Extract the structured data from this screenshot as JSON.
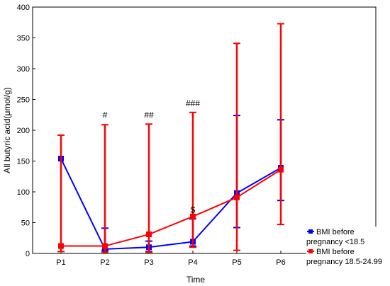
{
  "chart_data": {
    "type": "line",
    "xlabel": "Time",
    "ylabel": "All butyric acid(μmol/g)",
    "ylim": [
      0,
      400
    ],
    "yticks": [
      0,
      50,
      100,
      150,
      200,
      250,
      300,
      350,
      400
    ],
    "categories": [
      "P1",
      "P2",
      "P3",
      "P4",
      "P5",
      "P6"
    ],
    "grid": false,
    "legend_position": "bottom-right",
    "series": [
      {
        "name": "BMI before pregnancy <18.5",
        "legend_lines": [
          "BMI before",
          "pregnancy <18.5"
        ],
        "color": "#0000ff",
        "values": [
          154,
          7,
          10,
          19,
          98,
          139
        ],
        "err_low": [
          null,
          5,
          3,
          12,
          42,
          86
        ],
        "err_high": [
          null,
          41,
          20,
          56,
          224,
          217
        ]
      },
      {
        "name": "BMI before pregnancy 18.5-24.99",
        "legend_lines": [
          "BMI before",
          "pregnancy  18.5-24.99"
        ],
        "color": "#ff0000",
        "values": [
          12,
          12,
          31,
          60,
          91,
          136
        ],
        "err_low": [
          3,
          2,
          2,
          10,
          5,
          47
        ],
        "err_high": [
          192,
          209,
          210,
          229,
          341,
          373
        ]
      }
    ],
    "annotations": [
      {
        "text": "#",
        "category": "P2",
        "y": 220
      },
      {
        "text": "##",
        "category": "P3",
        "y": 220
      },
      {
        "text": "###",
        "category": "P4",
        "y": 239
      },
      {
        "text": "$",
        "category": "P4",
        "y": 66
      }
    ]
  }
}
